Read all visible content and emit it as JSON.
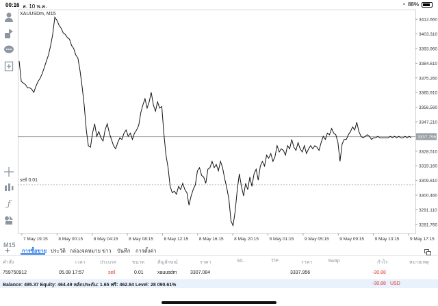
{
  "status": {
    "time": "00:16",
    "date": "ส. 10 พ.ค.",
    "battery": "88%"
  },
  "chart": {
    "symbol": "XAUUSDm, M15",
    "sell_line_label": "sell 0.01",
    "current_price": "3337.796"
  },
  "timeframe": "M15",
  "colors": {
    "price_line": "#111111",
    "accent": "#2a7be4",
    "negative": "#e03131",
    "sell_line": "#bbbbbb",
    "balance_bg": "#e8f1fc"
  },
  "icons": [
    "user-icon",
    "login-icon",
    "chat-icon",
    "add-page-icon",
    "crosshair-icon",
    "indicators-icon",
    "function-icon",
    "objects-icon",
    "plus-icon",
    "window-icon"
  ],
  "chart_data": {
    "type": "line",
    "y_ticks": [
      "3412.660",
      "3403.310",
      "3393.960",
      "3384.610",
      "3375.260",
      "3365.910",
      "3356.560",
      "3347.210",
      "3337.796",
      "3328.510",
      "3319.160",
      "3309.810",
      "3300.460",
      "3291.110",
      "3281.760"
    ],
    "x_ticks": [
      "7 May 19:15",
      "8 May 00:15",
      "8 May 04:15",
      "8 May 08:15",
      "8 May 12:15",
      "8 May 16:15",
      "8 May 20:15",
      "9 May 01:15",
      "9 May 05:15",
      "9 May 09:15",
      "9 May 13:15",
      "9 May 17:15"
    ],
    "ylim": [
      3276,
      3418
    ],
    "current_price": 3337.796,
    "sell_price": 3307.084,
    "x": [
      0,
      1,
      2,
      3,
      4,
      5,
      6,
      7,
      8,
      9,
      10,
      11,
      12,
      13,
      14,
      15,
      16,
      17,
      18,
      19,
      20,
      21,
      22,
      23,
      24,
      25,
      26,
      27,
      28,
      29,
      30,
      31,
      32,
      33,
      34,
      35,
      36,
      37,
      38,
      39,
      40,
      41,
      42,
      43,
      44,
      45,
      46,
      47,
      48,
      49,
      50,
      51,
      52,
      53,
      54,
      55,
      56,
      57,
      58,
      59,
      60,
      61,
      62,
      63,
      64,
      65,
      66,
      67,
      68,
      69,
      70,
      71,
      72,
      73,
      74,
      75,
      76,
      77,
      78,
      79,
      80,
      81,
      82,
      83,
      84,
      85,
      86,
      87,
      88,
      89,
      90,
      91,
      92,
      93,
      94,
      95,
      96,
      97,
      98,
      99,
      100,
      101,
      102,
      103,
      104,
      105,
      106,
      107,
      108,
      109,
      110,
      111,
      112,
      113,
      114,
      115,
      116,
      117,
      118,
      119,
      120,
      121,
      122,
      123,
      124,
      125,
      126,
      127,
      128,
      129,
      130,
      131,
      132,
      133,
      134,
      135,
      136,
      137,
      138,
      139,
      140,
      141,
      142,
      143,
      144,
      145,
      146,
      147,
      148,
      149,
      150,
      151,
      152,
      153,
      154,
      155,
      156,
      157,
      158,
      159,
      160,
      161,
      162,
      163,
      164,
      165,
      166,
      167,
      168,
      169,
      170,
      171,
      172,
      173,
      174,
      175,
      176,
      177,
      178,
      179,
      180,
      181,
      182,
      183,
      184,
      185,
      186,
      187
    ],
    "y": [
      3386,
      3373,
      3372,
      3371,
      3369,
      3369,
      3368,
      3366,
      3370,
      3373,
      3375,
      3378,
      3382,
      3386,
      3390,
      3396,
      3403,
      3414,
      3412,
      3409,
      3407,
      3404,
      3403,
      3401,
      3400,
      3396,
      3394,
      3390,
      3388,
      3380,
      3370,
      3358,
      3342,
      3332,
      3331,
      3340,
      3346,
      3338,
      3341,
      3337,
      3335,
      3342,
      3346,
      3340,
      3336,
      3332,
      3330,
      3334,
      3337,
      3336,
      3340,
      3342,
      3338,
      3340,
      3336,
      3340,
      3342,
      3345,
      3353,
      3358,
      3362,
      3356,
      3360,
      3366,
      3358,
      3354,
      3360,
      3356,
      3357,
      3340,
      3326,
      3318,
      3306,
      3302,
      3303,
      3301,
      3306,
      3304,
      3308,
      3304,
      3302,
      3294,
      3300,
      3304,
      3307,
      3316,
      3318,
      3313,
      3312,
      3308,
      3317,
      3318,
      3322,
      3318,
      3320,
      3316,
      3322,
      3318,
      3311,
      3305,
      3298,
      3284,
      3281,
      3290,
      3304,
      3314,
      3306,
      3300,
      3308,
      3304,
      3312,
      3306,
      3314,
      3317,
      3310,
      3319,
      3322,
      3319,
      3326,
      3324,
      3327,
      3322,
      3325,
      3332,
      3328,
      3330,
      3329,
      3326,
      3332,
      3330,
      3336,
      3331,
      3329,
      3334,
      3330,
      3328,
      3332,
      3327,
      3330,
      3332,
      3330,
      3332,
      3331,
      3329,
      3334,
      3338,
      3336,
      3340,
      3339,
      3343,
      3340,
      3339,
      3334,
      3322,
      3333,
      3336,
      3336,
      3339,
      3341,
      3344,
      3342,
      3347,
      3341,
      3338,
      3337,
      3338,
      3339,
      3338,
      3336,
      3337,
      3337,
      3338,
      3337,
      3337,
      3337,
      3337,
      3337,
      3338,
      3337,
      3338,
      3337,
      3338,
      3337,
      3337,
      3338,
      3337,
      3338,
      3337
    ]
  },
  "tabs": {
    "trade": "การซื้อขาย",
    "history": "ประวัติ",
    "inbox": "กล่องจดหมาย",
    "news": "ข่าว",
    "journal": "บันทึก",
    "settings": "การตั้งค่า"
  },
  "table": {
    "headers": {
      "order": "คำสั่ง",
      "time": "เวลา",
      "type": "ประเภท",
      "volume": "ขนาด",
      "symbol": "สัญลักษณ์",
      "price": "ราคา",
      "sl": "S/L",
      "tp": "T/P",
      "current_price": "ราคา",
      "swap": "Swap",
      "profit": "กำไร",
      "comment": "หมายเหตุ"
    },
    "row": {
      "order": "759750912",
      "time": "05.08 17:57",
      "type": "sell",
      "volume": "0.01",
      "symbol": "xauusdm",
      "price": "3307.084",
      "current_price": "3337.956",
      "profit": "-30.88"
    }
  },
  "balance": {
    "summary": "Balance: 495.37 Equity: 464.49 หลักประกัน: 1.65 ฟรี: 462.84 Level: 28 090.61%",
    "profit": "-30.88",
    "currency": "USD"
  }
}
